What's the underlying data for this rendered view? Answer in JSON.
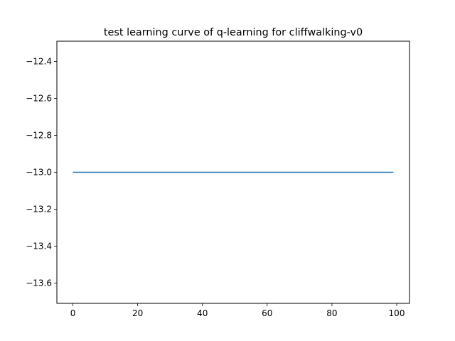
{
  "chart_data": {
    "type": "line",
    "title": "test learning curve of q-learning for cliffwalking-v0",
    "xlabel": "",
    "ylabel": "",
    "xlim": [
      -4.95,
      103.95
    ],
    "ylim": [
      -13.71,
      -12.29
    ],
    "xticks": [
      0,
      20,
      40,
      60,
      80,
      100
    ],
    "xtick_labels": [
      "0",
      "20",
      "40",
      "60",
      "80",
      "100"
    ],
    "yticks": [
      -12.4,
      -12.6,
      -12.8,
      -13.0,
      -13.2,
      -13.4,
      -13.6
    ],
    "ytick_labels": [
      "−12.4",
      "−12.6",
      "−12.8",
      "−13.0",
      "−13.2",
      "−13.4",
      "−13.6"
    ],
    "grid": false,
    "legend": "none",
    "series": [
      {
        "x_start": 0,
        "x_end": 99,
        "y_constant": -13.0,
        "color": "#1f77b4"
      }
    ]
  }
}
